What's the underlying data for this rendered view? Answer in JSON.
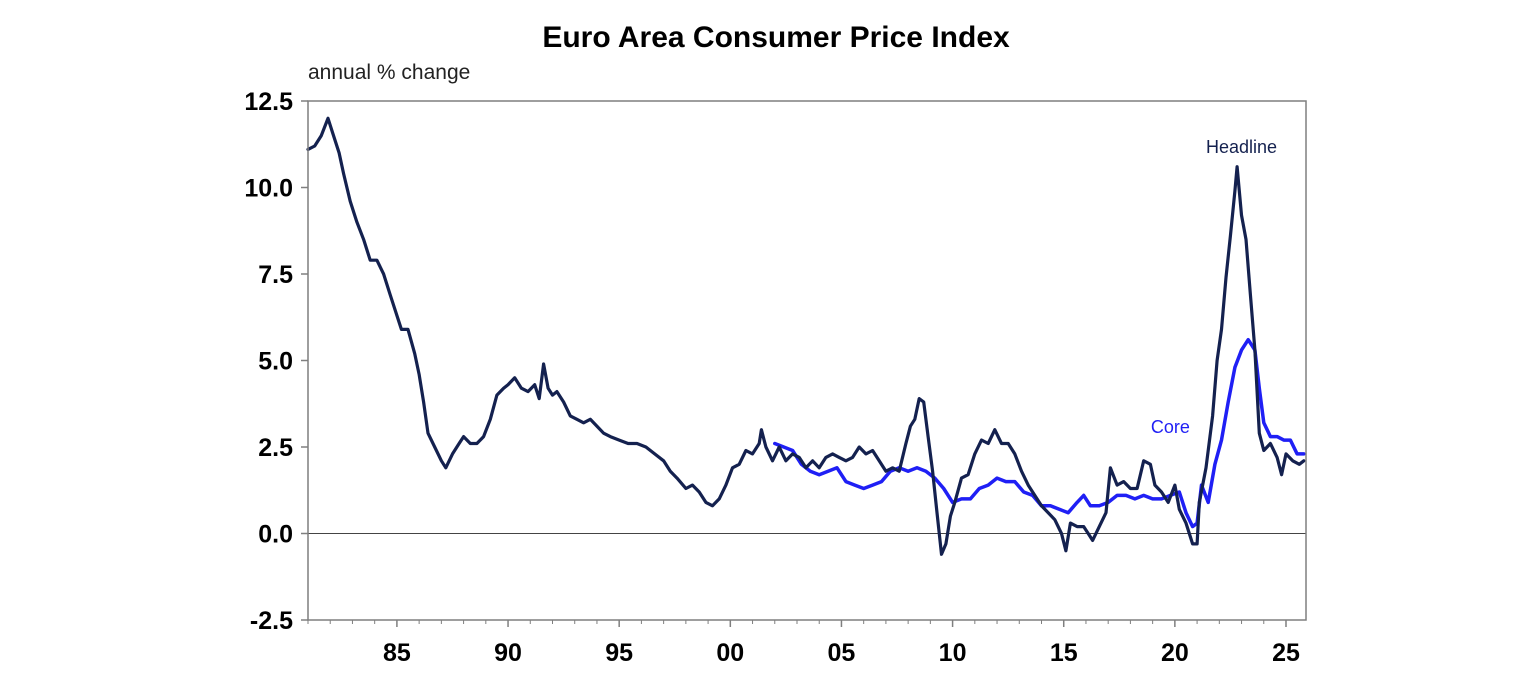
{
  "colors": {
    "headline": "#14214f",
    "core": "#1f1ff5",
    "axis": "#7f7f7f",
    "zero_line": "#444444"
  },
  "chart_data": {
    "type": "line",
    "title": "Euro Area Consumer Price Index",
    "subtitle": "annual % change",
    "xlabel": "",
    "ylabel": "",
    "xlim": [
      1981.0,
      2025.9
    ],
    "ylim": [
      -2.5,
      12.5
    ],
    "y_ticks": [
      -2.5,
      0.0,
      2.5,
      5.0,
      7.5,
      10.0,
      12.5
    ],
    "y_tick_labels": [
      "-2.5",
      "0.0",
      "2.5",
      "5.0",
      "7.5",
      "10.0",
      "12.5"
    ],
    "x_ticks": [
      1985,
      1990,
      1995,
      2000,
      2005,
      2010,
      2015,
      2020,
      2025
    ],
    "x_tick_labels": [
      "85",
      "90",
      "95",
      "00",
      "05",
      "10",
      "15",
      "20",
      "25"
    ],
    "grid": false,
    "legend": "inline labels",
    "series": [
      {
        "name": "Headline",
        "label_at": [
          2023.0,
          11.0
        ],
        "points": [
          [
            1981.0,
            11.1
          ],
          [
            1981.3,
            11.2
          ],
          [
            1981.6,
            11.5
          ],
          [
            1981.9,
            12.0
          ],
          [
            1982.1,
            11.6
          ],
          [
            1982.4,
            11.0
          ],
          [
            1982.6,
            10.4
          ],
          [
            1982.9,
            9.6
          ],
          [
            1983.2,
            9.0
          ],
          [
            1983.5,
            8.5
          ],
          [
            1983.8,
            7.9
          ],
          [
            1984.1,
            7.9
          ],
          [
            1984.4,
            7.5
          ],
          [
            1984.7,
            6.9
          ],
          [
            1985.0,
            6.3
          ],
          [
            1985.2,
            5.9
          ],
          [
            1985.5,
            5.9
          ],
          [
            1985.8,
            5.2
          ],
          [
            1986.0,
            4.6
          ],
          [
            1986.2,
            3.8
          ],
          [
            1986.4,
            2.9
          ],
          [
            1986.7,
            2.5
          ],
          [
            1987.0,
            2.1
          ],
          [
            1987.2,
            1.9
          ],
          [
            1987.5,
            2.3
          ],
          [
            1987.8,
            2.6
          ],
          [
            1988.0,
            2.8
          ],
          [
            1988.3,
            2.6
          ],
          [
            1988.6,
            2.6
          ],
          [
            1988.9,
            2.8
          ],
          [
            1989.2,
            3.3
          ],
          [
            1989.5,
            4.0
          ],
          [
            1989.8,
            4.2
          ],
          [
            1990.0,
            4.3
          ],
          [
            1990.3,
            4.5
          ],
          [
            1990.6,
            4.2
          ],
          [
            1990.9,
            4.1
          ],
          [
            1991.2,
            4.3
          ],
          [
            1991.4,
            3.9
          ],
          [
            1991.6,
            4.9
          ],
          [
            1991.8,
            4.2
          ],
          [
            1992.0,
            4.0
          ],
          [
            1992.2,
            4.1
          ],
          [
            1992.5,
            3.8
          ],
          [
            1992.8,
            3.4
          ],
          [
            1993.1,
            3.3
          ],
          [
            1993.4,
            3.2
          ],
          [
            1993.7,
            3.3
          ],
          [
            1994.0,
            3.1
          ],
          [
            1994.3,
            2.9
          ],
          [
            1994.6,
            2.8
          ],
          [
            1995.0,
            2.7
          ],
          [
            1995.4,
            2.6
          ],
          [
            1995.8,
            2.6
          ],
          [
            1996.2,
            2.5
          ],
          [
            1996.6,
            2.3
          ],
          [
            1997.0,
            2.1
          ],
          [
            1997.3,
            1.8
          ],
          [
            1997.6,
            1.6
          ],
          [
            1998.0,
            1.3
          ],
          [
            1998.3,
            1.4
          ],
          [
            1998.6,
            1.2
          ],
          [
            1998.9,
            0.9
          ],
          [
            1999.2,
            0.8
          ],
          [
            1999.5,
            1.0
          ],
          [
            1999.8,
            1.4
          ],
          [
            2000.1,
            1.9
          ],
          [
            2000.4,
            2.0
          ],
          [
            2000.7,
            2.4
          ],
          [
            2001.0,
            2.3
          ],
          [
            2001.3,
            2.6
          ],
          [
            2001.4,
            3.0
          ],
          [
            2001.6,
            2.5
          ],
          [
            2001.9,
            2.1
          ],
          [
            2002.2,
            2.5
          ],
          [
            2002.5,
            2.1
          ],
          [
            2002.8,
            2.3
          ],
          [
            2003.1,
            2.2
          ],
          [
            2003.4,
            1.9
          ],
          [
            2003.7,
            2.1
          ],
          [
            2004.0,
            1.9
          ],
          [
            2004.3,
            2.2
          ],
          [
            2004.6,
            2.3
          ],
          [
            2004.9,
            2.2
          ],
          [
            2005.2,
            2.1
          ],
          [
            2005.5,
            2.2
          ],
          [
            2005.8,
            2.5
          ],
          [
            2006.1,
            2.3
          ],
          [
            2006.4,
            2.4
          ],
          [
            2006.7,
            2.1
          ],
          [
            2007.0,
            1.8
          ],
          [
            2007.3,
            1.9
          ],
          [
            2007.6,
            1.8
          ],
          [
            2007.9,
            2.6
          ],
          [
            2008.1,
            3.1
          ],
          [
            2008.3,
            3.3
          ],
          [
            2008.5,
            3.9
          ],
          [
            2008.7,
            3.8
          ],
          [
            2008.9,
            2.8
          ],
          [
            2009.1,
            1.8
          ],
          [
            2009.3,
            0.6
          ],
          [
            2009.5,
            -0.6
          ],
          [
            2009.7,
            -0.3
          ],
          [
            2009.9,
            0.5
          ],
          [
            2010.1,
            0.9
          ],
          [
            2010.4,
            1.6
          ],
          [
            2010.7,
            1.7
          ],
          [
            2011.0,
            2.3
          ],
          [
            2011.3,
            2.7
          ],
          [
            2011.6,
            2.6
          ],
          [
            2011.9,
            3.0
          ],
          [
            2012.2,
            2.6
          ],
          [
            2012.5,
            2.6
          ],
          [
            2012.8,
            2.3
          ],
          [
            2013.1,
            1.8
          ],
          [
            2013.4,
            1.4
          ],
          [
            2013.7,
            1.1
          ],
          [
            2014.0,
            0.8
          ],
          [
            2014.3,
            0.6
          ],
          [
            2014.6,
            0.4
          ],
          [
            2014.9,
            0.0
          ],
          [
            2015.1,
            -0.5
          ],
          [
            2015.3,
            0.3
          ],
          [
            2015.6,
            0.2
          ],
          [
            2015.9,
            0.2
          ],
          [
            2016.1,
            0.0
          ],
          [
            2016.3,
            -0.2
          ],
          [
            2016.6,
            0.2
          ],
          [
            2016.9,
            0.6
          ],
          [
            2017.1,
            1.9
          ],
          [
            2017.4,
            1.4
          ],
          [
            2017.7,
            1.5
          ],
          [
            2018.0,
            1.3
          ],
          [
            2018.3,
            1.3
          ],
          [
            2018.6,
            2.1
          ],
          [
            2018.9,
            2.0
          ],
          [
            2019.1,
            1.4
          ],
          [
            2019.4,
            1.2
          ],
          [
            2019.7,
            0.9
          ],
          [
            2020.0,
            1.4
          ],
          [
            2020.2,
            0.7
          ],
          [
            2020.5,
            0.3
          ],
          [
            2020.8,
            -0.3
          ],
          [
            2021.0,
            -0.3
          ],
          [
            2021.1,
            0.9
          ],
          [
            2021.4,
            1.9
          ],
          [
            2021.7,
            3.4
          ],
          [
            2021.9,
            5.0
          ],
          [
            2022.1,
            5.9
          ],
          [
            2022.3,
            7.4
          ],
          [
            2022.5,
            8.6
          ],
          [
            2022.7,
            9.9
          ],
          [
            2022.8,
            10.6
          ],
          [
            2023.0,
            9.2
          ],
          [
            2023.2,
            8.5
          ],
          [
            2023.4,
            6.9
          ],
          [
            2023.6,
            5.3
          ],
          [
            2023.8,
            2.9
          ],
          [
            2024.0,
            2.4
          ],
          [
            2024.3,
            2.6
          ],
          [
            2024.6,
            2.2
          ],
          [
            2024.8,
            1.7
          ],
          [
            2025.0,
            2.3
          ],
          [
            2025.3,
            2.1
          ],
          [
            2025.6,
            2.0
          ],
          [
            2025.8,
            2.1
          ]
        ]
      },
      {
        "name": "Core",
        "label_at": [
          2019.8,
          2.9
        ],
        "points": [
          [
            2002.0,
            2.6
          ],
          [
            2002.4,
            2.5
          ],
          [
            2002.8,
            2.4
          ],
          [
            2003.2,
            2.0
          ],
          [
            2003.6,
            1.8
          ],
          [
            2004.0,
            1.7
          ],
          [
            2004.4,
            1.8
          ],
          [
            2004.8,
            1.9
          ],
          [
            2005.2,
            1.5
          ],
          [
            2005.6,
            1.4
          ],
          [
            2006.0,
            1.3
          ],
          [
            2006.4,
            1.4
          ],
          [
            2006.8,
            1.5
          ],
          [
            2007.2,
            1.8
          ],
          [
            2007.6,
            1.9
          ],
          [
            2008.0,
            1.8
          ],
          [
            2008.4,
            1.9
          ],
          [
            2008.8,
            1.8
          ],
          [
            2009.2,
            1.6
          ],
          [
            2009.6,
            1.3
          ],
          [
            2010.0,
            0.9
          ],
          [
            2010.4,
            1.0
          ],
          [
            2010.8,
            1.0
          ],
          [
            2011.2,
            1.3
          ],
          [
            2011.6,
            1.4
          ],
          [
            2012.0,
            1.6
          ],
          [
            2012.4,
            1.5
          ],
          [
            2012.8,
            1.5
          ],
          [
            2013.2,
            1.2
          ],
          [
            2013.6,
            1.1
          ],
          [
            2014.0,
            0.8
          ],
          [
            2014.4,
            0.8
          ],
          [
            2014.8,
            0.7
          ],
          [
            2015.2,
            0.6
          ],
          [
            2015.6,
            0.9
          ],
          [
            2015.9,
            1.1
          ],
          [
            2016.2,
            0.8
          ],
          [
            2016.6,
            0.8
          ],
          [
            2017.0,
            0.9
          ],
          [
            2017.4,
            1.1
          ],
          [
            2017.8,
            1.1
          ],
          [
            2018.2,
            1.0
          ],
          [
            2018.6,
            1.1
          ],
          [
            2019.0,
            1.0
          ],
          [
            2019.4,
            1.0
          ],
          [
            2019.8,
            1.1
          ],
          [
            2020.2,
            1.2
          ],
          [
            2020.5,
            0.6
          ],
          [
            2020.8,
            0.2
          ],
          [
            2021.0,
            0.3
          ],
          [
            2021.2,
            1.4
          ],
          [
            2021.5,
            0.9
          ],
          [
            2021.8,
            2.0
          ],
          [
            2022.1,
            2.7
          ],
          [
            2022.4,
            3.8
          ],
          [
            2022.7,
            4.8
          ],
          [
            2023.0,
            5.3
          ],
          [
            2023.3,
            5.6
          ],
          [
            2023.6,
            5.3
          ],
          [
            2023.8,
            4.2
          ],
          [
            2024.0,
            3.2
          ],
          [
            2024.3,
            2.8
          ],
          [
            2024.6,
            2.8
          ],
          [
            2024.9,
            2.7
          ],
          [
            2025.2,
            2.7
          ],
          [
            2025.5,
            2.3
          ],
          [
            2025.8,
            2.3
          ]
        ]
      }
    ]
  }
}
